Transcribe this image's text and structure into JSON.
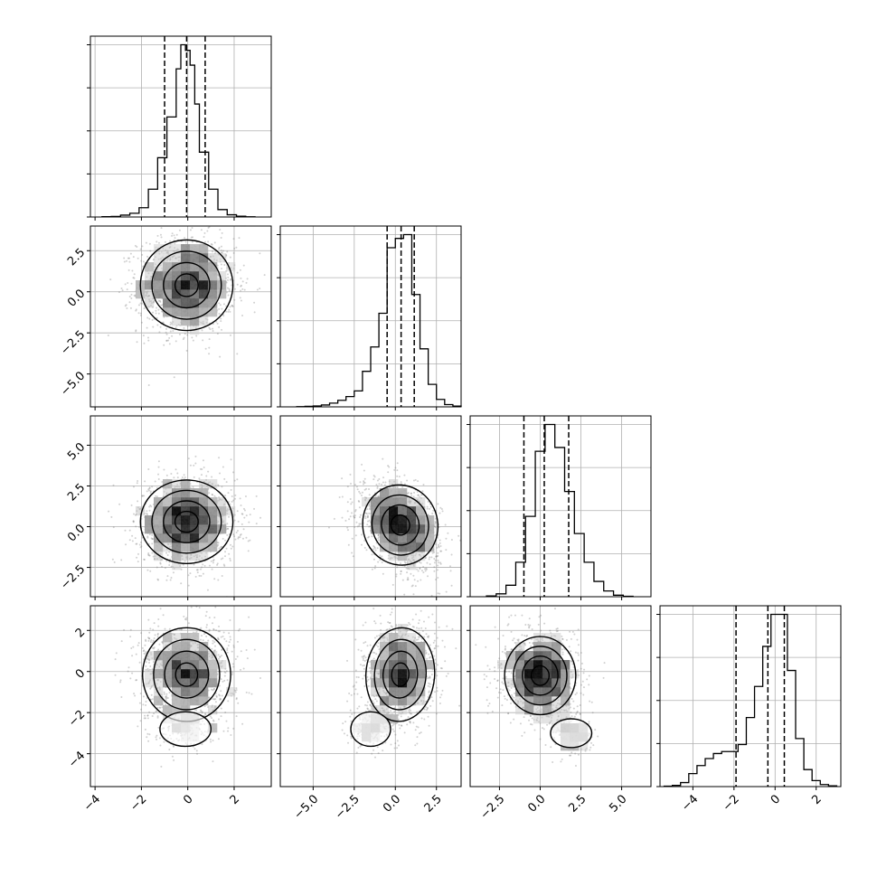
{
  "chart_data": {
    "type": "corner",
    "title": "",
    "parameters": [
      "",
      "",
      "",
      ""
    ],
    "grid": true,
    "quantile_lines": true,
    "ranges": [
      [
        -4.2,
        3.6
      ],
      [
        -7.0,
        4.0
      ],
      [
        -4.3,
        6.8
      ],
      [
        -5.6,
        3.2
      ]
    ],
    "ticks": [
      {
        "values": [
          -4,
          -2,
          0,
          2
        ],
        "labels": [
          "−4",
          "−2",
          "0",
          "2"
        ]
      },
      {
        "values": [
          -5.0,
          -2.5,
          0.0,
          2.5
        ],
        "labels": [
          "−5.0",
          "−2.5",
          "0.0",
          "2.5"
        ]
      },
      {
        "values": [
          -2.5,
          0.0,
          2.5,
          5.0
        ],
        "labels": [
          "−2.5",
          "0.0",
          "2.5",
          "5.0"
        ]
      },
      {
        "values": [
          -4,
          -2,
          0,
          2
        ],
        "labels": [
          "−4",
          "−2",
          "0",
          "2"
        ]
      }
    ],
    "histograms": [
      {
        "parameter_index": 0,
        "bin_edges": [
          -3.7,
          -3.3,
          -2.9,
          -2.5,
          -2.1,
          -1.7,
          -1.3,
          -0.9,
          -0.5,
          -0.3,
          -0.1,
          0.1,
          0.3,
          0.5,
          0.9,
          1.3,
          1.7,
          2.1,
          2.5,
          2.9
        ],
        "counts": [
          2,
          3,
          10,
          20,
          50,
          150,
          320,
          540,
          800,
          930,
          900,
          820,
          610,
          350,
          150,
          40,
          12,
          4,
          1
        ],
        "quantiles": [
          -1.0,
          -0.05,
          0.75
        ]
      },
      {
        "parameter_index": 1,
        "bin_edges": [
          -6.0,
          -5.5,
          -5.0,
          -4.5,
          -4.0,
          -3.5,
          -3.0,
          -2.5,
          -2.0,
          -1.5,
          -1.0,
          -0.5,
          0.0,
          0.5,
          1.0,
          1.5,
          2.0,
          2.5,
          3.0,
          3.5,
          4.0
        ],
        "counts": [
          1,
          3,
          5,
          10,
          20,
          35,
          55,
          85,
          190,
          320,
          500,
          850,
          900,
          920,
          600,
          310,
          120,
          40,
          12,
          4
        ],
        "quantiles": [
          -0.5,
          0.35,
          1.15
        ]
      },
      {
        "parameter_index": 2,
        "bin_edges": [
          -3.3,
          -2.7,
          -2.1,
          -1.5,
          -0.9,
          -0.3,
          0.3,
          0.9,
          1.5,
          2.1,
          2.7,
          3.3,
          3.9,
          4.5,
          5.1,
          5.7
        ],
        "counts": [
          4,
          15,
          60,
          180,
          420,
          760,
          900,
          780,
          550,
          330,
          180,
          80,
          30,
          8,
          2
        ],
        "quantiles": [
          -1.0,
          0.25,
          1.75
        ]
      },
      {
        "parameter_index": 3,
        "bin_edges": [
          -5.4,
          -5.0,
          -4.6,
          -4.2,
          -3.8,
          -3.4,
          -3.0,
          -2.6,
          -2.2,
          -1.8,
          -1.4,
          -1.0,
          -0.6,
          -0.2,
          0.2,
          0.6,
          1.0,
          1.4,
          1.8,
          2.2,
          2.6,
          3.0
        ],
        "counts": [
          2,
          6,
          20,
          65,
          105,
          140,
          165,
          175,
          175,
          210,
          345,
          500,
          700,
          860,
          860,
          580,
          240,
          85,
          30,
          10,
          4
        ],
        "quantiles": [
          -1.9,
          -0.35,
          0.45
        ]
      }
    ],
    "density_panels": [
      {
        "x_param": 0,
        "y_param": 1,
        "peak": [
          -0.05,
          0.4
        ],
        "spread": [
          1.05,
          1.45
        ],
        "correlation": 0.0
      },
      {
        "x_param": 0,
        "y_param": 2,
        "peak": [
          -0.05,
          0.3
        ],
        "spread": [
          1.05,
          1.35
        ],
        "correlation": 0.0
      },
      {
        "x_param": 1,
        "y_param": 2,
        "peak": [
          0.3,
          0.1
        ],
        "spread": [
          1.2,
          1.3
        ],
        "correlation": -0.35
      },
      {
        "x_param": 0,
        "y_param": 3,
        "peak": [
          -0.05,
          -0.15
        ],
        "spread": [
          1.0,
          1.2
        ],
        "correlation": 0.0,
        "tail": [
          -0.1,
          -2.8
        ]
      },
      {
        "x_param": 1,
        "y_param": 3,
        "peak": [
          0.3,
          -0.15
        ],
        "spread": [
          1.1,
          1.2
        ],
        "correlation": 0.1,
        "tail": [
          -1.5,
          -2.8
        ]
      },
      {
        "x_param": 2,
        "y_param": 3,
        "peak": [
          0.0,
          -0.2
        ],
        "spread": [
          1.15,
          1.0
        ],
        "correlation": 0.0,
        "tail": [
          1.9,
          -3.0
        ]
      }
    ]
  }
}
